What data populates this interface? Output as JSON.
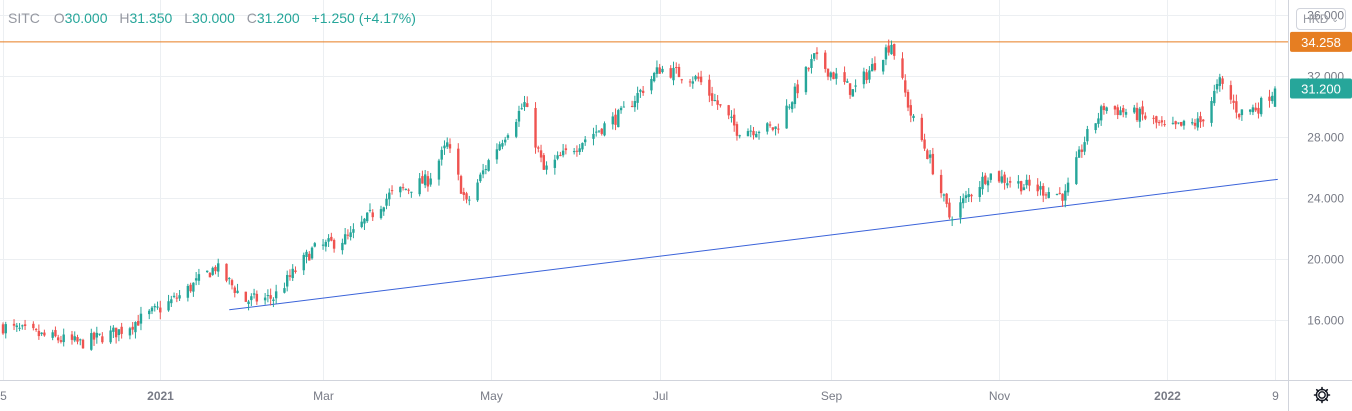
{
  "legend": {
    "symbol": "SITC",
    "open_label": "O",
    "open": "30.000",
    "high_label": "H",
    "high": "31.350",
    "low_label": "L",
    "low": "30.000",
    "close_label": "C",
    "close": "31.200",
    "change": "+1.250 (+4.17%)"
  },
  "currency": "HKD",
  "currency_icon": "chevron-down-icon",
  "settings_icon": "gear-icon",
  "colors": {
    "up": "#26a69a",
    "down": "#ef5350",
    "resistance": "#e67e22",
    "support": "#3a62d9",
    "grid": "#eceff2",
    "axis_text": "#787b86"
  },
  "chart_data": {
    "type": "candlestick",
    "price_axis": {
      "ticks": [
        16,
        20,
        24,
        28,
        32,
        36
      ],
      "tick_labels": [
        "16.000",
        "20.000",
        "24.000",
        "28.000",
        "32.000",
        "36.000"
      ],
      "range": [
        12.1,
        37.0
      ]
    },
    "time_axis": {
      "tick_labels": [
        "5",
        "2021",
        "Mar",
        "May",
        "Jul",
        "Sep",
        "Nov",
        "2022",
        "9"
      ],
      "tick_dates": [
        "2020-11-05",
        "2021-01-01",
        "2021-03-01",
        "2021-05-01",
        "2021-07-01",
        "2021-09-01",
        "2021-11-01",
        "2022-01-01",
        "2022-02-09"
      ]
    },
    "resistance_line": {
      "value": 34.258,
      "label": "34.258"
    },
    "last_price": {
      "value": 31.2,
      "label": "31.200"
    },
    "support_trendline": {
      "points": [
        {
          "date": "2021-01-26",
          "price": 16.7
        },
        {
          "date": "2022-02-10",
          "price": 25.25
        }
      ]
    },
    "grid": true,
    "closes_weekly": [
      {
        "date": "2020-11-05",
        "close": 15.6
      },
      {
        "date": "2020-11-19",
        "close": 15.0
      },
      {
        "date": "2020-12-03",
        "close": 14.5
      },
      {
        "date": "2020-12-17",
        "close": 15.3
      },
      {
        "date": "2021-01-01",
        "close": 16.8
      },
      {
        "date": "2021-01-08",
        "close": 17.6
      },
      {
        "date": "2021-01-21",
        "close": 19.5
      },
      {
        "date": "2021-02-01",
        "close": 17.3
      },
      {
        "date": "2021-02-11",
        "close": 17.5
      },
      {
        "date": "2021-02-25",
        "close": 20.6
      },
      {
        "date": "2021-03-11",
        "close": 21.5
      },
      {
        "date": "2021-03-25",
        "close": 24.2
      },
      {
        "date": "2021-04-08",
        "close": 25.2
      },
      {
        "date": "2021-04-15",
        "close": 27.5
      },
      {
        "date": "2021-04-22",
        "close": 23.6
      },
      {
        "date": "2021-05-01",
        "close": 26.8
      },
      {
        "date": "2021-05-13",
        "close": 30.2
      },
      {
        "date": "2021-05-20",
        "close": 25.8
      },
      {
        "date": "2021-06-03",
        "close": 27.8
      },
      {
        "date": "2021-06-17",
        "close": 29.5
      },
      {
        "date": "2021-07-01",
        "close": 32.5
      },
      {
        "date": "2021-07-15",
        "close": 31.8
      },
      {
        "date": "2021-07-29",
        "close": 28.5
      },
      {
        "date": "2021-08-12",
        "close": 28.6
      },
      {
        "date": "2021-08-26",
        "close": 33.2
      },
      {
        "date": "2021-09-09",
        "close": 31.0
      },
      {
        "date": "2021-09-23",
        "close": 34.2
      },
      {
        "date": "2021-09-30",
        "close": 29.5
      },
      {
        "date": "2021-10-07",
        "close": 26.5
      },
      {
        "date": "2021-10-14",
        "close": 22.8
      },
      {
        "date": "2021-10-28",
        "close": 25.6
      },
      {
        "date": "2021-11-11",
        "close": 24.8
      },
      {
        "date": "2021-11-25",
        "close": 24.2
      },
      {
        "date": "2021-12-02",
        "close": 27.8
      },
      {
        "date": "2021-12-09",
        "close": 30.0
      },
      {
        "date": "2021-12-23",
        "close": 29.4
      },
      {
        "date": "2022-01-01",
        "close": 28.5
      },
      {
        "date": "2022-01-13",
        "close": 29.0
      },
      {
        "date": "2022-01-20",
        "close": 31.6
      },
      {
        "date": "2022-01-27",
        "close": 29.6
      },
      {
        "date": "2022-02-03",
        "close": 30.0
      },
      {
        "date": "2022-02-09",
        "close": 31.2
      }
    ]
  }
}
